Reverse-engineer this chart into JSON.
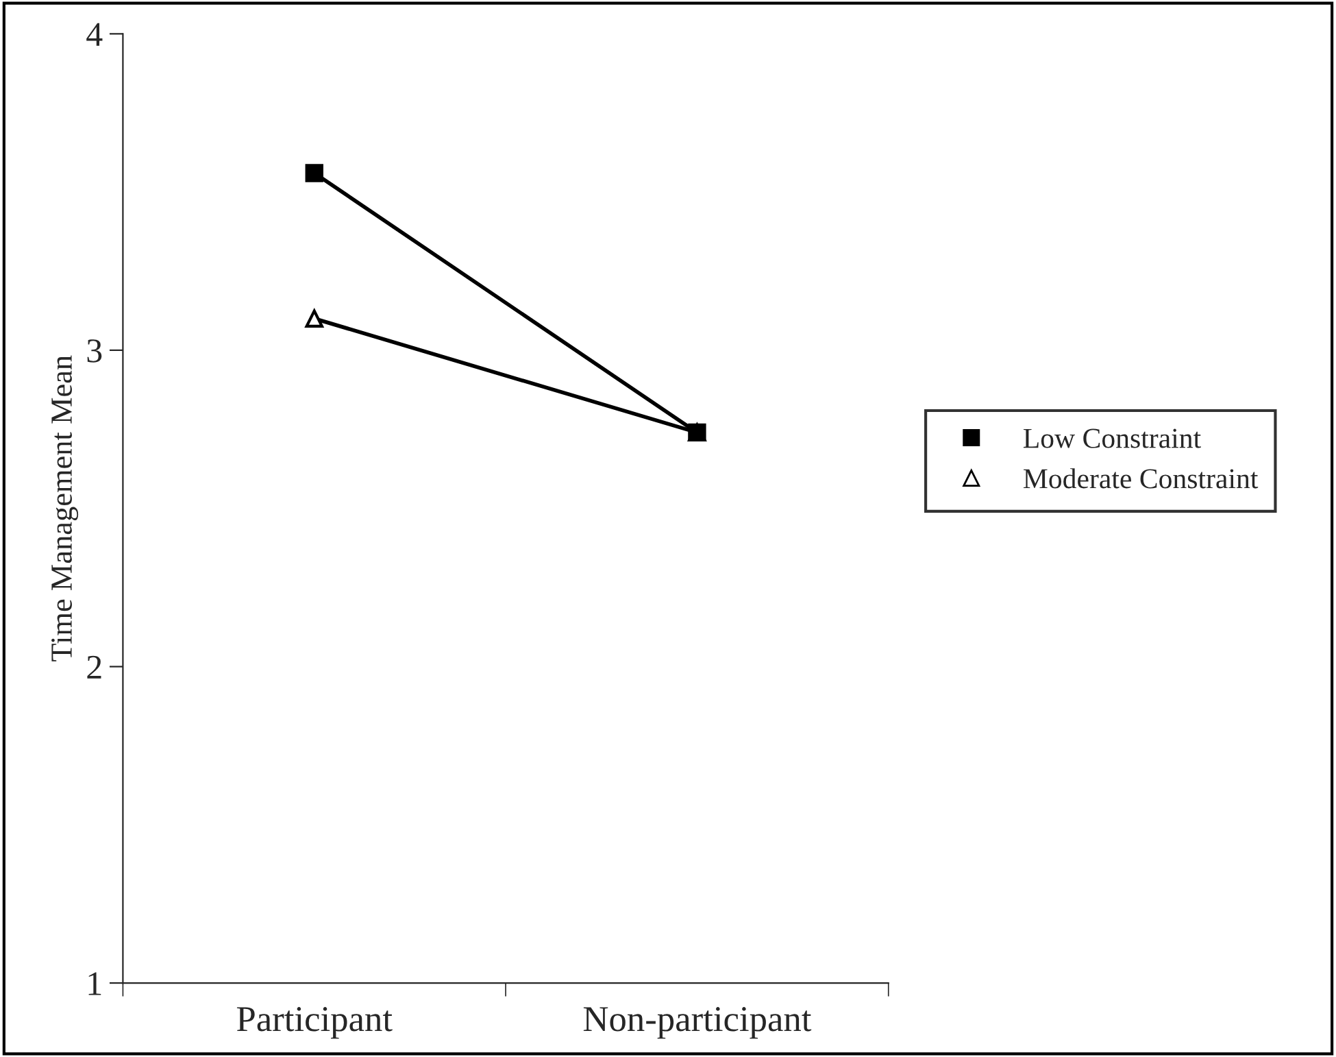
{
  "chart_data": {
    "type": "line",
    "ylabel": "Time Management Mean",
    "categories": [
      "Participant",
      "Non-participant"
    ],
    "series": [
      {
        "name": "Low Constraint",
        "color": "#000000",
        "marker": "square",
        "values": [
          3.56,
          2.74
        ]
      },
      {
        "name": "Moderate Constraint",
        "color": "#000000",
        "marker": "triangle",
        "values": [
          3.1,
          2.74
        ]
      }
    ],
    "ylim": [
      1,
      4
    ],
    "yticks": [
      1,
      2,
      3,
      4
    ],
    "grid": false,
    "legend": "right",
    "line_style": "solid"
  }
}
